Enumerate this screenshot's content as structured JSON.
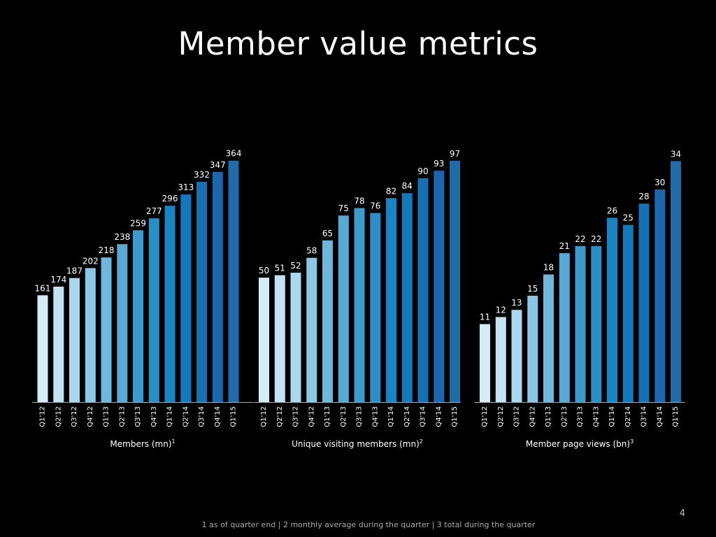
{
  "slide": {
    "title": "Member value metrics",
    "page_number": "4",
    "footnote": "1 as of quarter end | 2 monthly average during the quarter | 3 total during the quarter"
  },
  "colors": {
    "background": "#000000",
    "axis": "#aaaaaa",
    "bar_gradient": [
      "#d3ecf7",
      "#c3e3f4",
      "#a9d7ee",
      "#8cc8e6",
      "#6fb8dd",
      "#58a9d4",
      "#3c9bcd",
      "#2b8fc7",
      "#1a84c3",
      "#1279bd",
      "#1670b6",
      "#1b67ae",
      "#1e6ca9"
    ]
  },
  "chart_data": [
    {
      "type": "bar",
      "title": "Members (mn)",
      "footnote_ref": "1",
      "categories": [
        "Q1'12",
        "Q2'12",
        "Q3'12",
        "Q4'12",
        "Q1'13",
        "Q2'13",
        "Q3'13",
        "Q4'13",
        "Q1'14",
        "Q2'14",
        "Q3'14",
        "Q4'14",
        "Q1'15"
      ],
      "values": [
        161,
        174,
        187,
        202,
        218,
        238,
        259,
        277,
        296,
        313,
        332,
        347,
        364
      ],
      "data_labels": [
        "161",
        "174",
        "187",
        "202",
        "218",
        "238",
        "259",
        "277",
        "296",
        "313",
        "332",
        "347",
        "364"
      ],
      "ylim": [
        0,
        390
      ]
    },
    {
      "type": "bar",
      "title": "Unique visiting members (mn)",
      "footnote_ref": "2",
      "categories": [
        "Q1'12",
        "Q2'12",
        "Q3'12",
        "Q4'12",
        "Q1'13",
        "Q2'13",
        "Q3'13",
        "Q4'13",
        "Q1'14",
        "Q2'14",
        "Q3'14",
        "Q4'14",
        "Q1'15"
      ],
      "values": [
        50,
        51,
        52,
        58,
        65,
        75,
        78,
        76,
        82,
        84,
        90,
        93,
        97
      ],
      "data_labels": [
        "50",
        "51",
        "52",
        "58",
        "65",
        "75",
        "78",
        "76",
        "82",
        "84",
        "90",
        "93",
        "97"
      ],
      "ylim": [
        0,
        104
      ]
    },
    {
      "type": "bar",
      "title": "Member page views (bn)",
      "footnote_ref": "3",
      "categories": [
        "Q1'12",
        "Q2'12",
        "Q3'12",
        "Q4'12",
        "Q1'13",
        "Q2'13",
        "Q3'13",
        "Q4'13",
        "Q1'14",
        "Q2'14",
        "Q3'14",
        "Q4'14",
        "Q1'15"
      ],
      "values": [
        11,
        12,
        13,
        15,
        18,
        21,
        22,
        22,
        26,
        25,
        28,
        30,
        34
      ],
      "data_labels": [
        "11",
        "12",
        "13",
        "15",
        "18",
        "21",
        "22",
        "22",
        "26",
        "25",
        "28",
        "30",
        "34"
      ],
      "ylim": [
        0,
        36.5
      ]
    }
  ]
}
